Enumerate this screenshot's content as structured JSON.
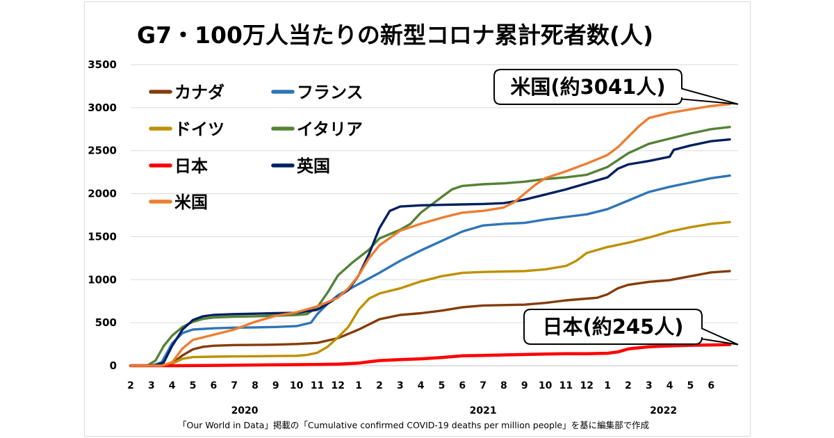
{
  "chart_data": {
    "type": "line",
    "title": "G7・100万人当たりの新型コロナ累計死者数(人)",
    "source_note": "「Our World in Data」掲載の「Cumulative confirmed COVID-19 deaths per million people」を基に編集部で作成",
    "ylim": [
      0,
      3500
    ],
    "yticks": [
      "3500",
      "3000",
      "2500",
      "2000",
      "1500",
      "1000",
      "500",
      "0"
    ],
    "x_range": [
      0,
      29.3
    ],
    "xtick_labels": [
      "2",
      "3",
      "4",
      "5",
      "6",
      "7",
      "8",
      "9",
      "10",
      "11",
      "12",
      "1",
      "2",
      "3",
      "4",
      "5",
      "6",
      "7",
      "8",
      "9",
      "10",
      "11",
      "12",
      "1",
      "2",
      "3",
      "4",
      "5",
      "6"
    ],
    "years": [
      {
        "label": "2020",
        "at": 5.5
      },
      {
        "label": "2021",
        "at": 17
      },
      {
        "label": "2022",
        "at": 25.7
      }
    ],
    "grid": true,
    "legend_position": "top-left",
    "callouts": [
      {
        "text": "米国(約3041人)",
        "series": "米国",
        "value": 3041
      },
      {
        "text": "日本(約245人)",
        "series": "日本",
        "value": 245
      }
    ],
    "series": [
      {
        "name": "カナダ",
        "color": "#843c0c",
        "points": [
          [
            0,
            0
          ],
          [
            1,
            0
          ],
          [
            1.5,
            5
          ],
          [
            2,
            30
          ],
          [
            2.5,
            120
          ],
          [
            3,
            190
          ],
          [
            3.5,
            220
          ],
          [
            4,
            232
          ],
          [
            5,
            240
          ],
          [
            6,
            242
          ],
          [
            7,
            245
          ],
          [
            8,
            252
          ],
          [
            9,
            265
          ],
          [
            10,
            320
          ],
          [
            11,
            420
          ],
          [
            12,
            540
          ],
          [
            13,
            590
          ],
          [
            14,
            610
          ],
          [
            15,
            640
          ],
          [
            16,
            680
          ],
          [
            17,
            700
          ],
          [
            18,
            705
          ],
          [
            19,
            710
          ],
          [
            20,
            730
          ],
          [
            21,
            760
          ],
          [
            22,
            780
          ],
          [
            22.5,
            790
          ],
          [
            23,
            830
          ],
          [
            23.5,
            900
          ],
          [
            24,
            940
          ],
          [
            25,
            975
          ],
          [
            26,
            995
          ],
          [
            27,
            1040
          ],
          [
            28,
            1085
          ],
          [
            28.9,
            1100
          ]
        ]
      },
      {
        "name": "フランス",
        "color": "#2e75b6",
        "points": [
          [
            0,
            0
          ],
          [
            1,
            0
          ],
          [
            1.5,
            40
          ],
          [
            2,
            260
          ],
          [
            2.5,
            380
          ],
          [
            3,
            420
          ],
          [
            4,
            435
          ],
          [
            5,
            442
          ],
          [
            6,
            445
          ],
          [
            7,
            450
          ],
          [
            8,
            460
          ],
          [
            8.7,
            500
          ],
          [
            9,
            600
          ],
          [
            9.5,
            720
          ],
          [
            10,
            820
          ],
          [
            11,
            950
          ],
          [
            12,
            1080
          ],
          [
            13,
            1220
          ],
          [
            14,
            1340
          ],
          [
            15,
            1450
          ],
          [
            16,
            1560
          ],
          [
            17,
            1630
          ],
          [
            18,
            1650
          ],
          [
            19,
            1660
          ],
          [
            20,
            1700
          ],
          [
            21,
            1730
          ],
          [
            22,
            1760
          ],
          [
            23,
            1820
          ],
          [
            24,
            1920
          ],
          [
            25,
            2020
          ],
          [
            26,
            2080
          ],
          [
            27,
            2130
          ],
          [
            28,
            2180
          ],
          [
            28.9,
            2210
          ]
        ]
      },
      {
        "name": "ドイツ",
        "color": "#bf9000",
        "points": [
          [
            0,
            0
          ],
          [
            1.6,
            0
          ],
          [
            2,
            25
          ],
          [
            2.5,
            80
          ],
          [
            3,
            100
          ],
          [
            4,
            105
          ],
          [
            5,
            108
          ],
          [
            6,
            110
          ],
          [
            7,
            112
          ],
          [
            8,
            115
          ],
          [
            8.5,
            125
          ],
          [
            9,
            150
          ],
          [
            9.5,
            220
          ],
          [
            10,
            330
          ],
          [
            10.5,
            450
          ],
          [
            11,
            650
          ],
          [
            11.5,
            780
          ],
          [
            12,
            840
          ],
          [
            13,
            900
          ],
          [
            14,
            980
          ],
          [
            15,
            1040
          ],
          [
            16,
            1080
          ],
          [
            17,
            1090
          ],
          [
            18,
            1095
          ],
          [
            19,
            1100
          ],
          [
            20,
            1120
          ],
          [
            21,
            1160
          ],
          [
            21.5,
            1220
          ],
          [
            22,
            1310
          ],
          [
            23,
            1380
          ],
          [
            24,
            1430
          ],
          [
            25,
            1490
          ],
          [
            26,
            1560
          ],
          [
            27,
            1610
          ],
          [
            28,
            1650
          ],
          [
            28.9,
            1670
          ]
        ]
      },
      {
        "name": "イタリア",
        "color": "#548235",
        "points": [
          [
            0,
            0
          ],
          [
            0.8,
            0
          ],
          [
            1.2,
            60
          ],
          [
            1.6,
            230
          ],
          [
            2,
            350
          ],
          [
            2.5,
            450
          ],
          [
            3,
            510
          ],
          [
            3.5,
            545
          ],
          [
            4,
            560
          ],
          [
            5,
            570
          ],
          [
            6,
            575
          ],
          [
            7,
            580
          ],
          [
            8,
            590
          ],
          [
            8.5,
            600
          ],
          [
            9,
            680
          ],
          [
            9.5,
            850
          ],
          [
            10,
            1050
          ],
          [
            10.7,
            1200
          ],
          [
            11.5,
            1350
          ],
          [
            12,
            1480
          ],
          [
            13,
            1580
          ],
          [
            13.5,
            1650
          ],
          [
            14,
            1780
          ],
          [
            15,
            1960
          ],
          [
            15.5,
            2050
          ],
          [
            16,
            2090
          ],
          [
            17,
            2110
          ],
          [
            18,
            2120
          ],
          [
            19,
            2140
          ],
          [
            20,
            2170
          ],
          [
            21,
            2190
          ],
          [
            22,
            2220
          ],
          [
            23,
            2310
          ],
          [
            24,
            2470
          ],
          [
            25,
            2580
          ],
          [
            26,
            2640
          ],
          [
            27,
            2700
          ],
          [
            28,
            2750
          ],
          [
            28.9,
            2775
          ]
        ]
      },
      {
        "name": "日本",
        "color": "#ff0000",
        "points": [
          [
            0,
            0
          ],
          [
            2,
            0
          ],
          [
            4,
            3
          ],
          [
            6,
            8
          ],
          [
            8,
            12
          ],
          [
            9,
            14
          ],
          [
            10,
            18
          ],
          [
            11,
            30
          ],
          [
            11.5,
            45
          ],
          [
            12,
            60
          ],
          [
            13,
            70
          ],
          [
            14,
            80
          ],
          [
            15,
            95
          ],
          [
            16,
            115
          ],
          [
            17,
            120
          ],
          [
            18,
            125
          ],
          [
            19,
            130
          ],
          [
            20,
            135
          ],
          [
            21,
            140
          ],
          [
            22,
            140
          ],
          [
            23,
            145
          ],
          [
            23.5,
            160
          ],
          [
            24,
            195
          ],
          [
            25,
            220
          ],
          [
            26,
            230
          ],
          [
            27,
            238
          ],
          [
            28.9,
            245
          ]
        ]
      },
      {
        "name": "英国",
        "color": "#002060",
        "points": [
          [
            0,
            0
          ],
          [
            1.2,
            0
          ],
          [
            1.6,
            40
          ],
          [
            2,
            230
          ],
          [
            2.5,
            420
          ],
          [
            3,
            530
          ],
          [
            3.5,
            575
          ],
          [
            4,
            590
          ],
          [
            5,
            600
          ],
          [
            6,
            605
          ],
          [
            7,
            610
          ],
          [
            8,
            615
          ],
          [
            9,
            650
          ],
          [
            9.7,
            750
          ],
          [
            10.5,
            880
          ],
          [
            11,
            1050
          ],
          [
            11.5,
            1300
          ],
          [
            12,
            1600
          ],
          [
            12.5,
            1800
          ],
          [
            13,
            1850
          ],
          [
            14,
            1865
          ],
          [
            15,
            1870
          ],
          [
            16,
            1875
          ],
          [
            17,
            1880
          ],
          [
            18,
            1890
          ],
          [
            19,
            1930
          ],
          [
            20,
            1990
          ],
          [
            21,
            2050
          ],
          [
            22,
            2120
          ],
          [
            23,
            2190
          ],
          [
            23.5,
            2290
          ],
          [
            24,
            2340
          ],
          [
            25,
            2380
          ],
          [
            26,
            2430
          ],
          [
            26.2,
            2510
          ],
          [
            27,
            2560
          ],
          [
            28,
            2610
          ],
          [
            28.9,
            2630
          ]
        ]
      },
      {
        "name": "米国",
        "color": "#ed7d31",
        "points": [
          [
            0,
            0
          ],
          [
            1.5,
            0
          ],
          [
            2,
            40
          ],
          [
            2.5,
            200
          ],
          [
            3,
            300
          ],
          [
            4,
            360
          ],
          [
            5,
            420
          ],
          [
            6,
            510
          ],
          [
            7,
            580
          ],
          [
            8,
            620
          ],
          [
            9,
            690
          ],
          [
            10,
            790
          ],
          [
            10.5,
            900
          ],
          [
            11,
            1050
          ],
          [
            11.5,
            1250
          ],
          [
            12,
            1400
          ],
          [
            13,
            1570
          ],
          [
            14,
            1650
          ],
          [
            15,
            1720
          ],
          [
            16,
            1780
          ],
          [
            17,
            1800
          ],
          [
            18,
            1840
          ],
          [
            18.5,
            1900
          ],
          [
            19,
            2000
          ],
          [
            19.5,
            2100
          ],
          [
            20,
            2180
          ],
          [
            21,
            2260
          ],
          [
            22,
            2350
          ],
          [
            23,
            2450
          ],
          [
            23.5,
            2540
          ],
          [
            24,
            2660
          ],
          [
            24.5,
            2780
          ],
          [
            25,
            2880
          ],
          [
            26,
            2940
          ],
          [
            27,
            2980
          ],
          [
            28,
            3020
          ],
          [
            28.9,
            3041
          ]
        ]
      }
    ]
  }
}
